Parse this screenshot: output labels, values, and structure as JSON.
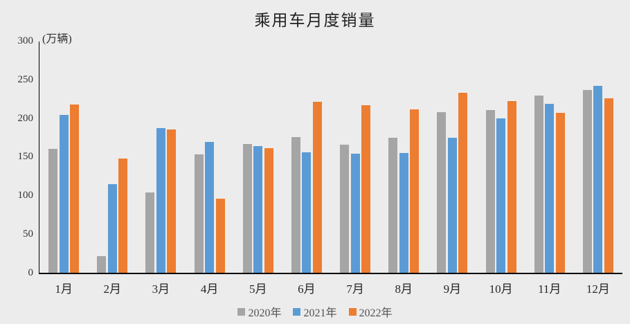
{
  "colors": {
    "background": "#ececec",
    "axis": "#000000",
    "series_2020": "#a5a5a5",
    "series_2021": "#5b9bd5",
    "series_2022": "#ed7d31"
  },
  "chart_data": {
    "type": "bar",
    "title": "乘用车月度销量",
    "unit_label": "(万辆)",
    "xlabel": "",
    "ylabel": "万辆",
    "categories": [
      "1月",
      "2月",
      "3月",
      "4月",
      "5月",
      "6月",
      "7月",
      "8月",
      "9月",
      "10月",
      "11月",
      "12月"
    ],
    "series": [
      {
        "name": "2020年",
        "color": "#a5a5a5",
        "values": [
          161.4,
          22.4,
          104.5,
          153.6,
          167.4,
          176.4,
          166.5,
          175.5,
          208.8,
          211.0,
          229.7,
          237.5
        ]
      },
      {
        "name": "2021年",
        "color": "#5b9bd5",
        "values": [
          204.5,
          115.5,
          187.5,
          170.4,
          164.6,
          156.9,
          155.1,
          155.2,
          175.1,
          200.4,
          219.2,
          242.2
        ]
      },
      {
        "name": "2022年",
        "color": "#ed7d31",
        "values": [
          218.6,
          148.7,
          186.4,
          96.5,
          162.3,
          222.2,
          217.4,
          212.5,
          233.2,
          223.1,
          207.5,
          226.3
        ]
      }
    ],
    "ylim": [
      0,
      300
    ],
    "yticks": [
      0,
      50,
      100,
      150,
      200,
      250,
      300
    ],
    "grid": false,
    "legend_position": "bottom"
  }
}
